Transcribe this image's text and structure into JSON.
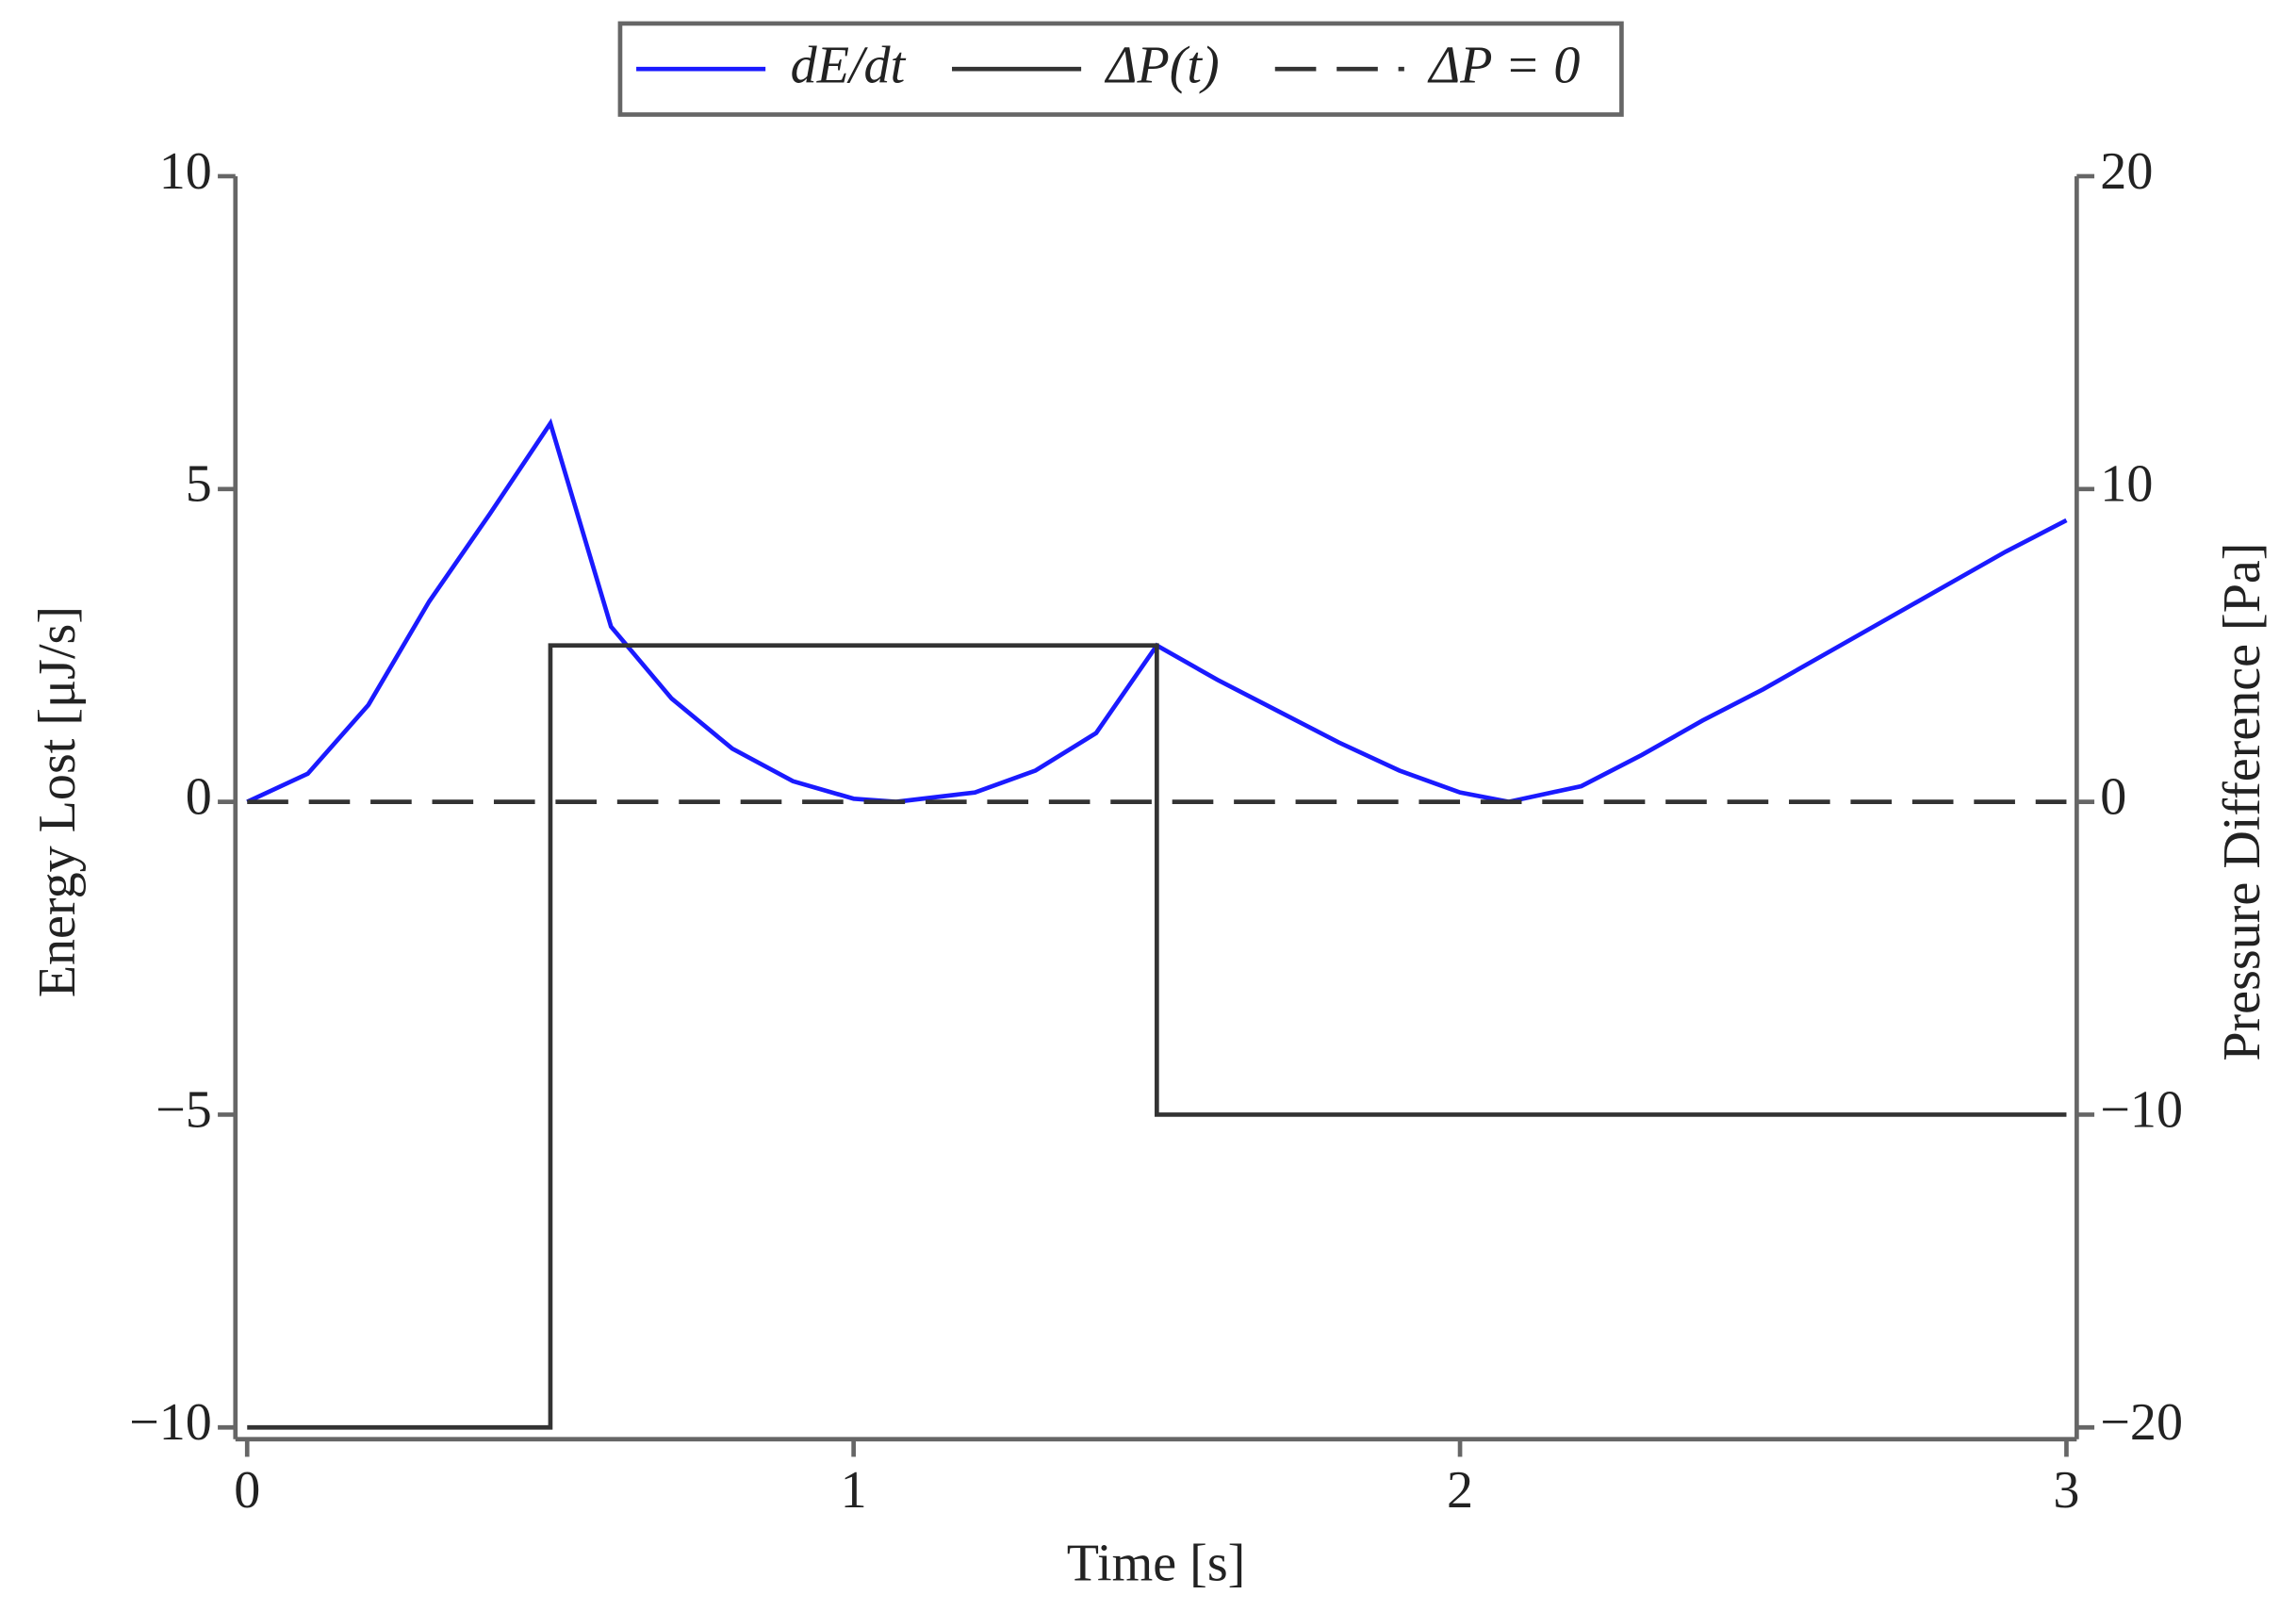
{
  "chart_data": {
    "type": "line",
    "xlabel": "Time [s]",
    "ylabel": "Energy Lost [μJ/s]",
    "y2label": "Pressure Difference [Pa]",
    "xlim": [
      0,
      3
    ],
    "xticks": [
      0,
      1,
      2,
      3
    ],
    "ylim": [
      -10,
      10
    ],
    "yticks": [
      {
        "value": -10,
        "label": "−10"
      },
      {
        "value": -5,
        "label": "−5"
      },
      0,
      5,
      10
    ],
    "y2lim": [
      -20,
      20
    ],
    "y2ticks": [
      {
        "value": -20,
        "label": "−20"
      },
      {
        "value": -10,
        "label": "−10"
      },
      0,
      10,
      20
    ],
    "legend": "top",
    "series": [
      {
        "name": "dE/dt",
        "color": "#1a1aff",
        "linestyle": "solid",
        "x": [
          0,
          0.1,
          0.2,
          0.3,
          0.4,
          0.5,
          0.6,
          0.7,
          0.8,
          0.9,
          1.0,
          1.07,
          1.2,
          1.3,
          1.4,
          1.5,
          1.6,
          1.7,
          1.8,
          1.9,
          2.0,
          2.08,
          2.2,
          2.3,
          2.4,
          2.5,
          2.6,
          2.7,
          2.8,
          2.9,
          3.0
        ],
        "values": [
          0,
          0.45,
          1.55,
          3.2,
          4.6,
          6.05,
          2.8,
          1.65,
          0.85,
          0.33,
          0.05,
          0,
          0.15,
          0.5,
          1.1,
          2.5,
          1.95,
          1.45,
          0.95,
          0.5,
          0.15,
          0,
          0.25,
          0.75,
          1.3,
          1.8,
          2.35,
          2.9,
          3.45,
          4.0,
          4.5
        ]
      },
      {
        "name": "ΔP(t)",
        "color": "#333333",
        "linestyle": "solid",
        "axis": "y2",
        "x": [
          0,
          0.5,
          0.5,
          1.5,
          1.5,
          3
        ],
        "values": [
          -20,
          -20,
          5,
          5,
          -10,
          -10
        ]
      },
      {
        "name": "ΔP = 0",
        "color": "#333333",
        "linestyle": "dashed",
        "axis": "y2",
        "x": [
          0,
          3
        ],
        "values": [
          0,
          0
        ]
      }
    ]
  }
}
